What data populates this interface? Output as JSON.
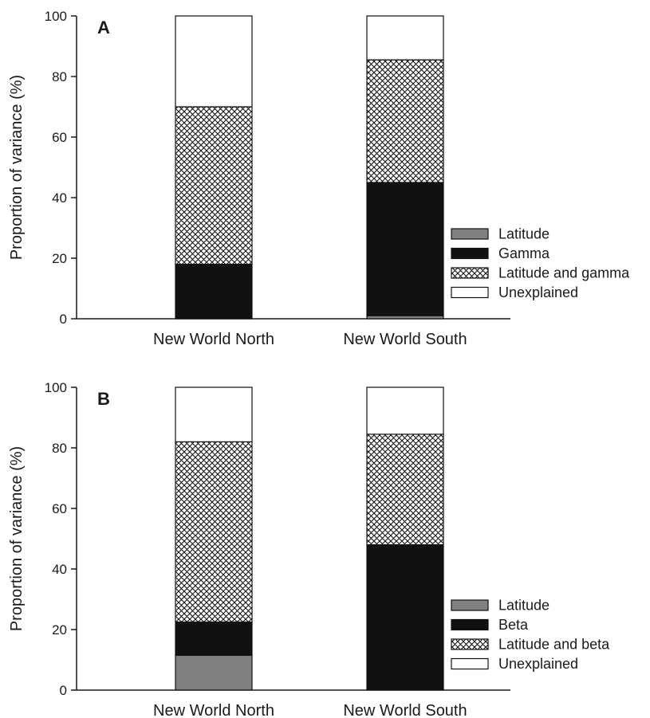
{
  "colors": {
    "latitude": "#808080",
    "driver": "#111111",
    "shared": "crosshatch",
    "unexplained": "#ffffff",
    "axis": "#1a1a1a"
  },
  "chart_data": [
    {
      "type": "bar",
      "stacked": true,
      "panel": "A",
      "categories": [
        "New World North",
        "New World South"
      ],
      "ylabel": "Proportion of variance (%)",
      "xlabel": "",
      "ylim": [
        0,
        100
      ],
      "yticks": [
        "0",
        "20",
        "40",
        "60",
        "80",
        "100"
      ],
      "legend_position": "right",
      "series": [
        {
          "name": "Latitude",
          "key": "latitude",
          "values": [
            0,
            1
          ]
        },
        {
          "name": "Gamma",
          "key": "driver",
          "values": [
            18,
            44
          ]
        },
        {
          "name": "Latitude and gamma",
          "key": "shared",
          "values": [
            52,
            40.5
          ]
        },
        {
          "name": "Unexplained",
          "key": "unexplained",
          "values": [
            30,
            14.5
          ]
        }
      ]
    },
    {
      "type": "bar",
      "stacked": true,
      "panel": "B",
      "categories": [
        "New World North",
        "New World South"
      ],
      "ylabel": "Proportion of variance (%)",
      "xlabel": "",
      "ylim": [
        0,
        100
      ],
      "yticks": [
        "0",
        "20",
        "40",
        "60",
        "80",
        "100"
      ],
      "legend_position": "right",
      "series": [
        {
          "name": "Latitude",
          "key": "latitude",
          "values": [
            11.5,
            0
          ]
        },
        {
          "name": "Beta",
          "key": "driver",
          "values": [
            11,
            48
          ]
        },
        {
          "name": "Latitude and beta",
          "key": "shared",
          "values": [
            59.5,
            36.5
          ]
        },
        {
          "name": "Unexplained",
          "key": "unexplained",
          "values": [
            18,
            15.5
          ]
        }
      ]
    }
  ]
}
